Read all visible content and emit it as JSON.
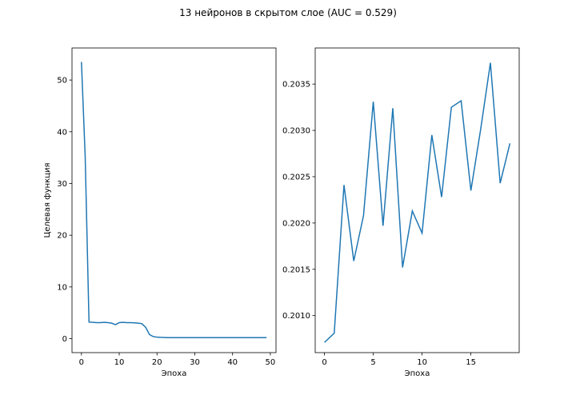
{
  "title": "13 нейронов в скрытом слое (AUC = 0.529)",
  "line_color": "#1f77b4",
  "chart_data": [
    {
      "type": "line",
      "xlabel": "Эпоха",
      "ylabel": "Целевая функция",
      "xlim": [
        -2.5,
        51.5
      ],
      "ylim": [
        -2.7,
        56.2
      ],
      "xticks": [
        0,
        10,
        20,
        30,
        40,
        50
      ],
      "yticks": [
        0,
        10,
        20,
        30,
        40,
        50
      ],
      "x": [
        0,
        1,
        2,
        3,
        4,
        5,
        6,
        7,
        8,
        9,
        10,
        11,
        12,
        13,
        14,
        15,
        16,
        17,
        18,
        19,
        20,
        21,
        22,
        23,
        24,
        25,
        26,
        27,
        28,
        29,
        30,
        31,
        32,
        33,
        34,
        35,
        36,
        37,
        38,
        39,
        40,
        41,
        42,
        43,
        44,
        45,
        46,
        47,
        48,
        49
      ],
      "y": [
        53.5,
        35.0,
        3.2,
        3.15,
        3.1,
        3.1,
        3.15,
        3.1,
        3.0,
        2.7,
        3.1,
        3.15,
        3.1,
        3.1,
        3.05,
        3.0,
        2.9,
        2.2,
        0.8,
        0.4,
        0.3,
        0.25,
        0.22,
        0.2,
        0.2,
        0.2,
        0.2,
        0.2,
        0.2,
        0.2,
        0.2,
        0.2,
        0.2,
        0.2,
        0.2,
        0.2,
        0.2,
        0.2,
        0.2,
        0.2,
        0.2,
        0.2,
        0.2,
        0.2,
        0.2,
        0.2,
        0.2,
        0.2,
        0.2,
        0.2
      ],
      "grid": false
    },
    {
      "type": "line",
      "xlabel": "Эпоха",
      "ylabel": "",
      "xlim": [
        -0.95,
        19.95
      ],
      "ylim": [
        0.2006,
        0.20389
      ],
      "xticks": [
        0,
        5,
        10,
        15
      ],
      "yticks": [
        "0.2010",
        "0.2015",
        "0.2020",
        "0.2025",
        "0.2030",
        "0.2035"
      ],
      "x": [
        0,
        1,
        2,
        3,
        4,
        5,
        6,
        7,
        8,
        9,
        10,
        11,
        12,
        13,
        14,
        15,
        16,
        17,
        18,
        19
      ],
      "y": [
        0.20071,
        0.20081,
        0.20241,
        0.20159,
        0.20208,
        0.20331,
        0.20197,
        0.20324,
        0.20152,
        0.20213,
        0.20189,
        0.20295,
        0.20228,
        0.20325,
        0.20332,
        0.20235,
        0.20301,
        0.20373,
        0.20243,
        0.20286
      ],
      "grid": false
    }
  ]
}
